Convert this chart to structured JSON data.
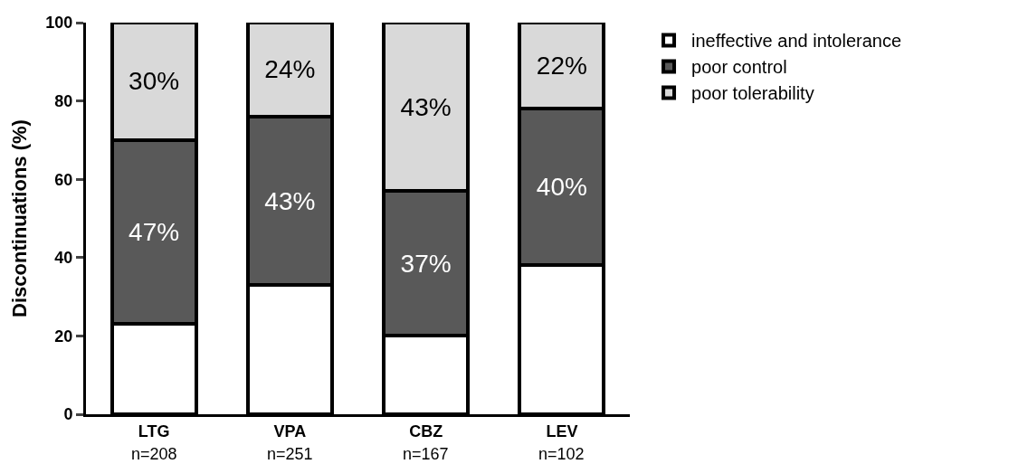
{
  "chart_data": {
    "type": "bar",
    "stacked": true,
    "ylabel": "Discontinuations (%)",
    "categories": [
      "LTG",
      "VPA",
      "CBZ",
      "LEV"
    ],
    "series": [
      {
        "name": "ineffective and intolerance",
        "color": "#ffffff",
        "values": [
          23,
          33,
          20,
          38
        ],
        "value_labels": [
          null,
          null,
          null,
          null
        ]
      },
      {
        "name": "poor control",
        "color": "#595959",
        "values": [
          47,
          43,
          37,
          40
        ],
        "value_labels": [
          "47%",
          "43%",
          "37%",
          "40%"
        ]
      },
      {
        "name": "poor tolerability",
        "color": "#d9d9d9",
        "values": [
          30,
          24,
          43,
          22
        ],
        "value_labels": [
          "30%",
          "24%",
          "43%",
          "22%"
        ]
      }
    ],
    "annotations": [
      "n=208",
      "n=251",
      "n=167",
      "n=102"
    ],
    "ylim": [
      0,
      100
    ],
    "yticks": [
      0,
      20,
      40,
      60,
      80,
      100
    ],
    "legend": "right"
  }
}
